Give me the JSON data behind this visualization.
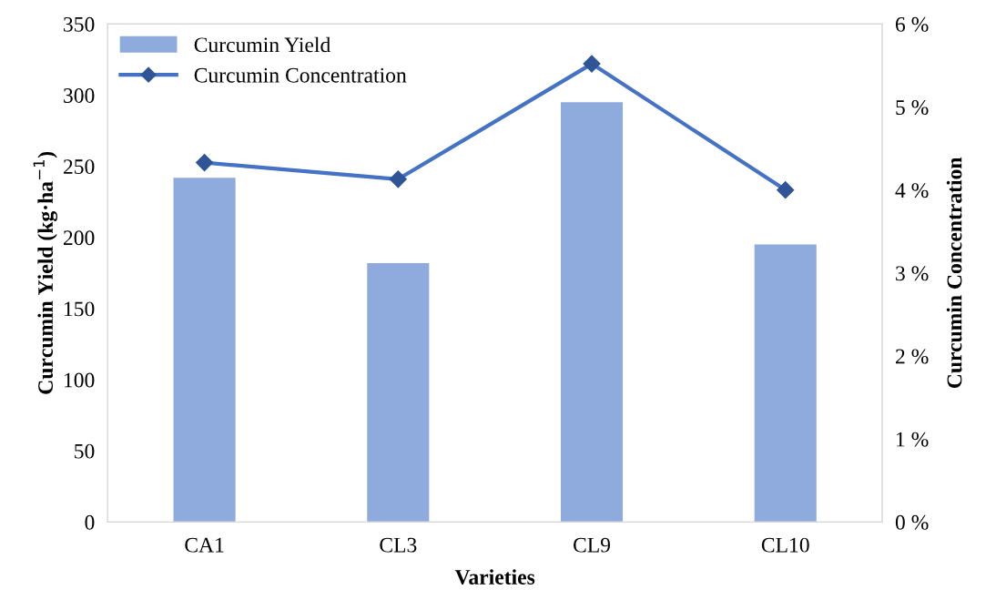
{
  "chart_data": {
    "type": "bar",
    "xlabel": "Varieties",
    "ylabel": "Curcumin Yield (kg·ha$^{−1}$)",
    "y2label": "Curcumin Concentration",
    "categories": [
      "CA1",
      "CL3",
      "CL9",
      "CL10"
    ],
    "series": [
      {
        "name": "Curcumin Yield",
        "color": "#8faadc",
        "values": [
          242,
          182,
          295,
          195
        ]
      },
      {
        "name": "Curcumin Concentration",
        "type": "line",
        "axis": "y2",
        "color": "#4472c4",
        "marker": "diamond",
        "values": [
          4.33,
          4.13,
          5.52,
          4.0
        ]
      }
    ],
    "ylim": [
      0,
      350
    ],
    "yticks": [
      0,
      50,
      100,
      150,
      200,
      250,
      300,
      350
    ],
    "y2lim": [
      0,
      6
    ],
    "y2ticks": [
      {
        "value": 0,
        "label": "0 %"
      },
      {
        "value": 1,
        "label": "1 %"
      },
      {
        "value": 2,
        "label": "2 %"
      },
      {
        "value": 3,
        "label": "3 %"
      },
      {
        "value": 4,
        "label": "4 %"
      },
      {
        "value": 5,
        "label": "5 %"
      },
      {
        "value": 6,
        "label": "6 %"
      }
    ],
    "grid": false,
    "legend": "top left"
  }
}
